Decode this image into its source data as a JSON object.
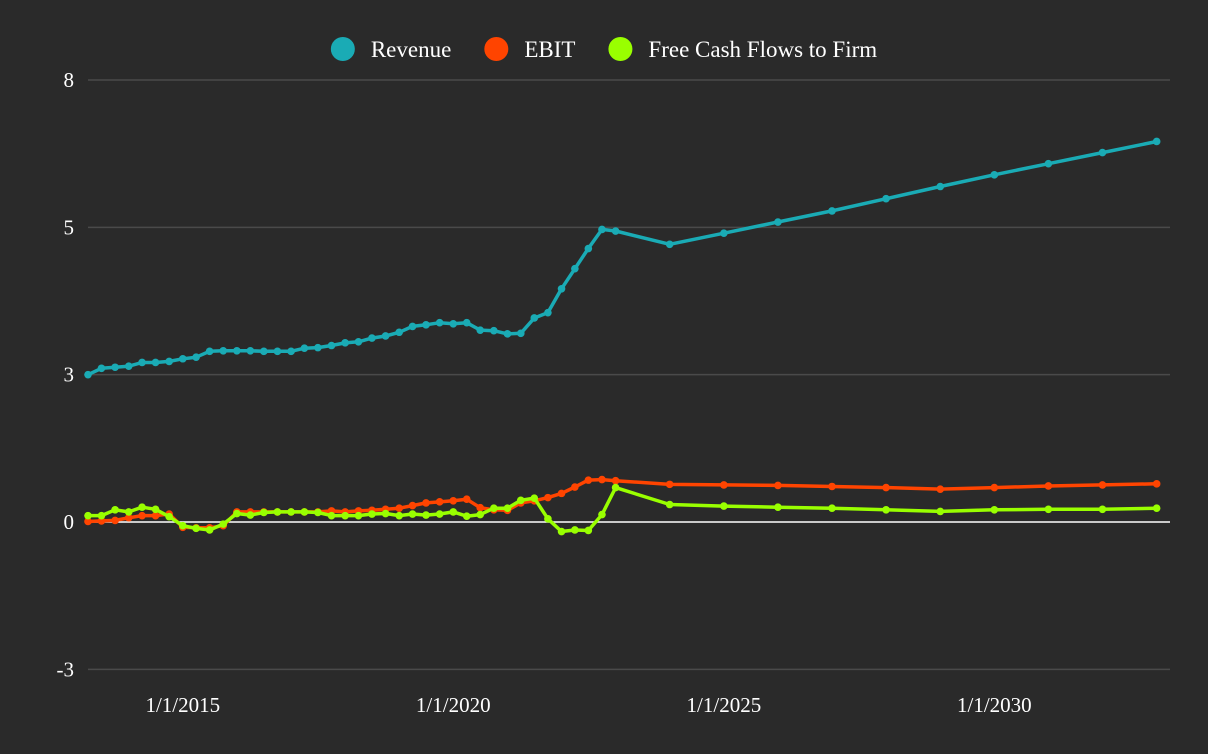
{
  "chart_data": {
    "type": "line",
    "title": "",
    "xlabel": "",
    "ylabel": "",
    "ylim": [
      -3,
      8
    ],
    "xlim": [
      "2013-04-01",
      "2033-04-01"
    ],
    "grid": true,
    "legend": "top-center",
    "y_ticks": [
      "-3",
      "0",
      "3",
      "5",
      "8"
    ],
    "y_tick_values": [
      -2.78,
      0,
      2.78,
      5.56,
      8.34
    ],
    "x_ticks": [
      "1/1/2015",
      "1/1/2020",
      "1/1/2025",
      "1/1/2030"
    ],
    "x_tick_values": [
      "2015-01-01",
      "2020-01-01",
      "2025-01-01",
      "2030-01-01"
    ],
    "x": [
      "2013-04-01",
      "2013-07-01",
      "2013-10-01",
      "2014-01-01",
      "2014-04-01",
      "2014-07-01",
      "2014-10-01",
      "2015-01-01",
      "2015-04-01",
      "2015-07-01",
      "2015-10-01",
      "2016-01-01",
      "2016-04-01",
      "2016-07-01",
      "2016-10-01",
      "2017-01-01",
      "2017-04-01",
      "2017-07-01",
      "2017-10-01",
      "2018-01-01",
      "2018-04-01",
      "2018-07-01",
      "2018-10-01",
      "2019-01-01",
      "2019-04-01",
      "2019-07-01",
      "2019-10-01",
      "2020-01-01",
      "2020-04-01",
      "2020-07-01",
      "2020-10-01",
      "2021-01-01",
      "2021-04-01",
      "2021-07-01",
      "2021-10-01",
      "2022-01-01",
      "2022-04-01",
      "2022-07-01",
      "2022-10-01",
      "2023-01-01",
      "2024-01-01",
      "2025-01-01",
      "2026-01-01",
      "2027-01-01",
      "2028-01-01",
      "2029-01-01",
      "2030-01-01",
      "2031-01-01",
      "2032-01-01",
      "2033-01-01"
    ],
    "series": [
      {
        "name": "Revenue",
        "color": "#1aabb5",
        "values": [
          2.78,
          2.9,
          2.92,
          2.94,
          3.01,
          3.01,
          3.03,
          3.08,
          3.11,
          3.22,
          3.23,
          3.23,
          3.23,
          3.22,
          3.22,
          3.22,
          3.28,
          3.29,
          3.33,
          3.38,
          3.4,
          3.47,
          3.51,
          3.58,
          3.69,
          3.72,
          3.76,
          3.74,
          3.76,
          3.62,
          3.61,
          3.55,
          3.56,
          3.85,
          3.95,
          4.4,
          4.78,
          5.16,
          5.52,
          5.49,
          5.24,
          5.45,
          5.66,
          5.87,
          6.1,
          6.33,
          6.55,
          6.76,
          6.97,
          7.18
        ]
      },
      {
        "name": "EBIT",
        "color": "#ff4400",
        "values": [
          0.01,
          0.02,
          0.03,
          0.08,
          0.12,
          0.12,
          0.15,
          -0.1,
          -0.11,
          -0.11,
          -0.07,
          0.19,
          0.19,
          0.19,
          0.19,
          0.19,
          0.19,
          0.19,
          0.21,
          0.19,
          0.21,
          0.22,
          0.24,
          0.26,
          0.31,
          0.36,
          0.38,
          0.4,
          0.43,
          0.27,
          0.23,
          0.22,
          0.36,
          0.4,
          0.46,
          0.54,
          0.66,
          0.79,
          0.8,
          0.78,
          0.71,
          0.7,
          0.69,
          0.67,
          0.65,
          0.62,
          0.65,
          0.68,
          0.7,
          0.72
        ]
      },
      {
        "name": "Free Cash Flows to Firm",
        "color": "#99ff00",
        "values": [
          0.12,
          0.12,
          0.23,
          0.19,
          0.28,
          0.24,
          0.1,
          -0.07,
          -0.12,
          -0.15,
          -0.04,
          0.16,
          0.13,
          0.18,
          0.19,
          0.19,
          0.19,
          0.18,
          0.12,
          0.12,
          0.12,
          0.15,
          0.16,
          0.12,
          0.15,
          0.13,
          0.15,
          0.19,
          0.11,
          0.14,
          0.26,
          0.26,
          0.41,
          0.45,
          0.06,
          -0.18,
          -0.15,
          -0.16,
          0.14,
          0.65,
          0.33,
          0.3,
          0.28,
          0.26,
          0.23,
          0.2,
          0.23,
          0.24,
          0.24,
          0.26
        ]
      }
    ]
  }
}
